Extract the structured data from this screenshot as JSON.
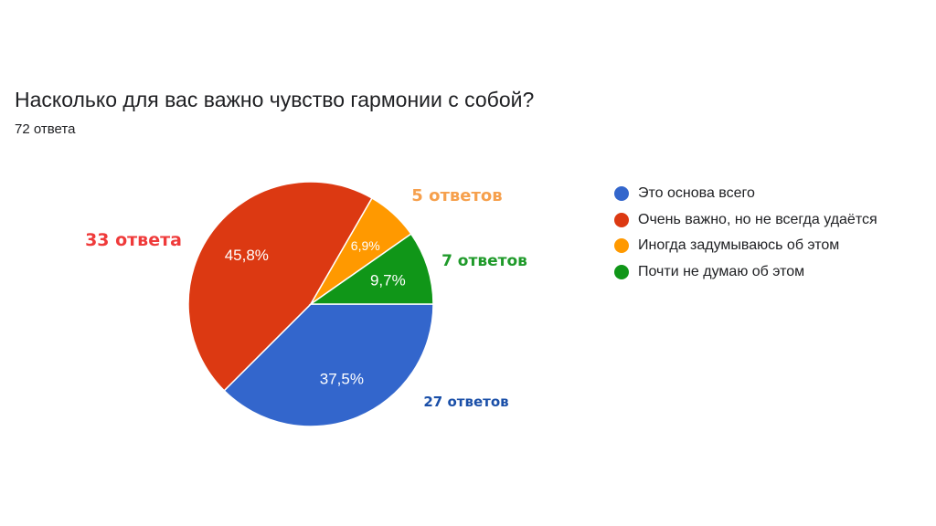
{
  "title": "Насколько для вас важно чувство гармонии с собой?",
  "subtitle": "72 ответа",
  "chart_data": {
    "type": "pie",
    "title": "Насколько для вас важно чувство гармонии с собой?",
    "total_responses": 72,
    "legend_position": "right",
    "slices": [
      {
        "label": "Это основа всего",
        "value": 27,
        "percent_label": "37,5%",
        "count_label": "27 ответов",
        "color": "#3366cc",
        "label_color": "#1a4fa8"
      },
      {
        "label": "Очень важно, но не всегда удаётся",
        "value": 33,
        "percent_label": "45,8%",
        "count_label": "33 ответа",
        "color": "#dc3912",
        "label_color": "#ef3a3a"
      },
      {
        "label": "Иногда задумываюсь об этом",
        "value": 5,
        "percent_label": "6,9%",
        "count_label": "5 ответов",
        "color": "#ff9900",
        "label_color": "#f6a04d"
      },
      {
        "label": "Почти не думаю об этом",
        "value": 7,
        "percent_label": "9,7%",
        "count_label": "7 ответов",
        "color": "#109618",
        "label_color": "#1f9a2a"
      }
    ]
  }
}
